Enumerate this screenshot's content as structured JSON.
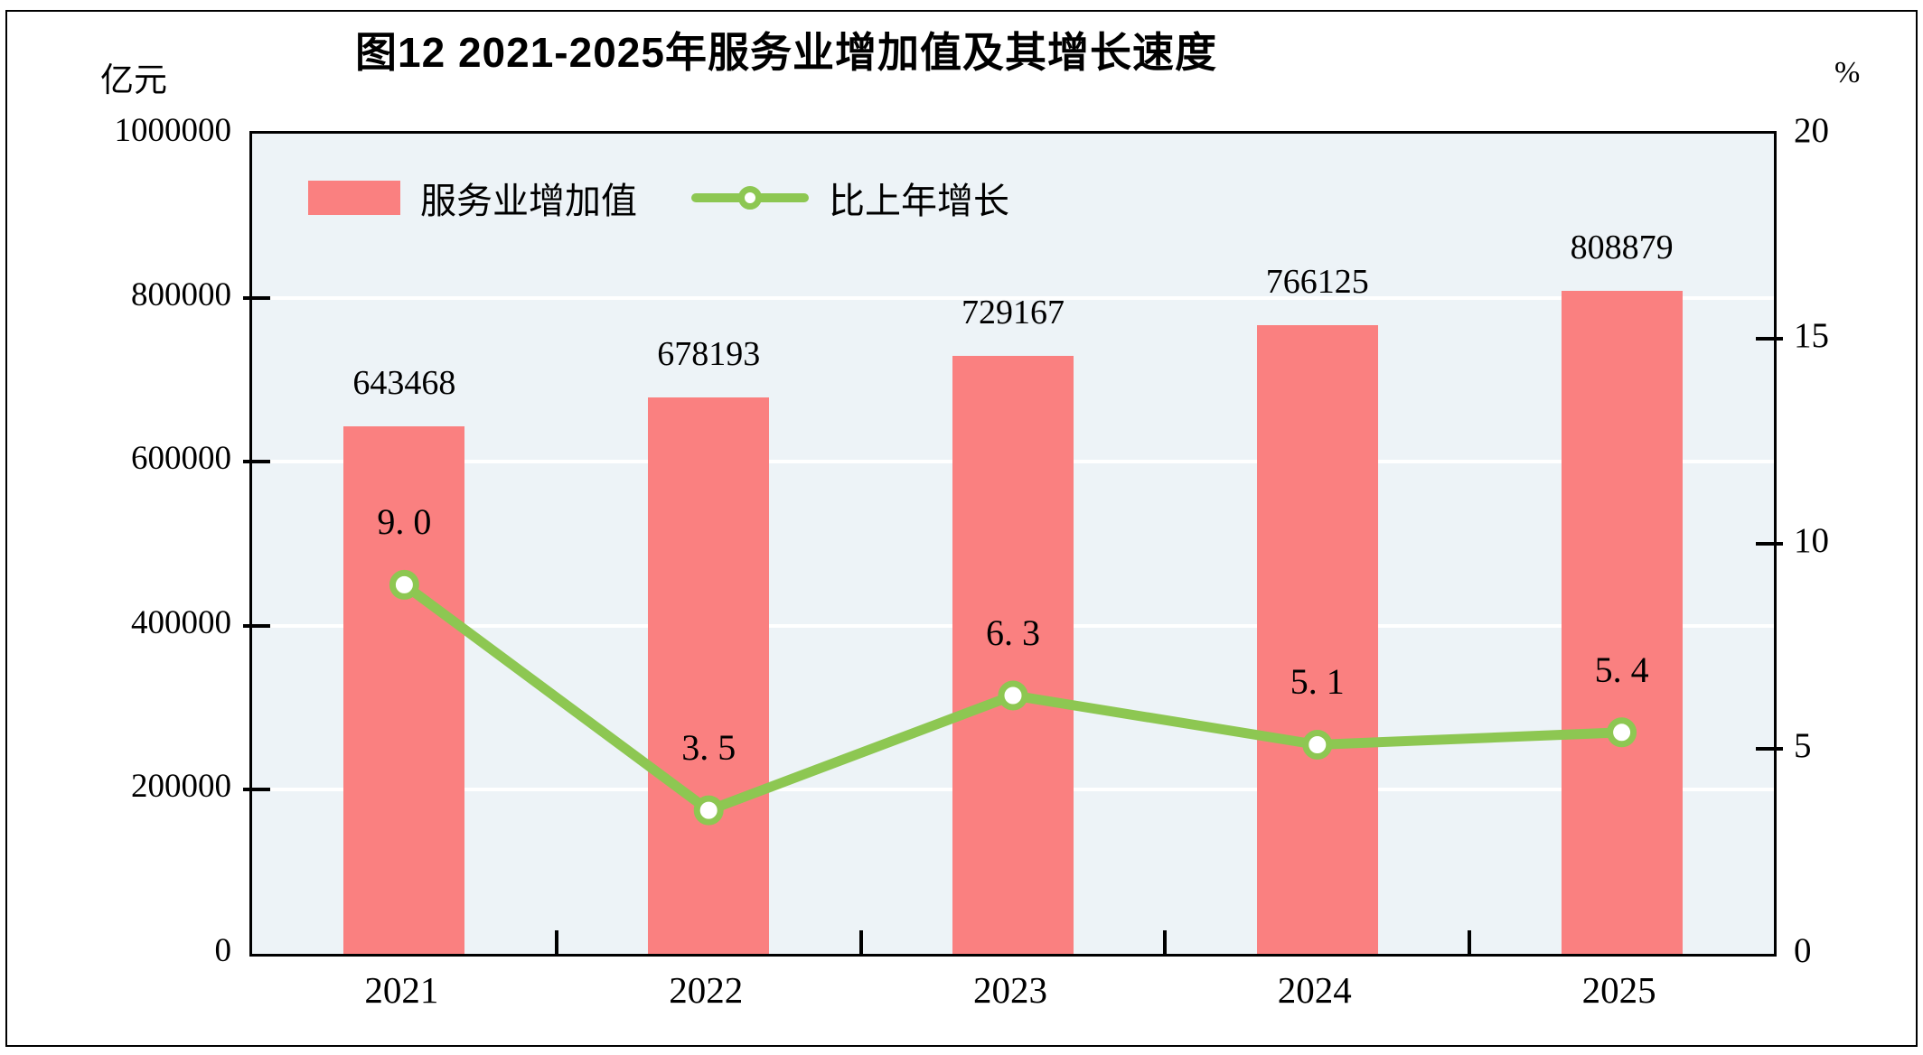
{
  "title": "图12  2021-2025年服务业增加值及其增长速度",
  "left_axis": {
    "unit": "亿元",
    "ticks": [
      "1000000",
      "800000",
      "600000",
      "400000",
      "200000",
      "0"
    ]
  },
  "right_axis": {
    "unit": "%",
    "ticks": [
      "20",
      "15",
      "10",
      "5",
      "0"
    ]
  },
  "legend": [
    {
      "label": "服务业增加值",
      "type": "bar"
    },
    {
      "label": "比上年增长",
      "type": "line"
    }
  ],
  "colors": {
    "bar": "#fa8080",
    "line": "#8dc752",
    "marker_fill": "#ffffff",
    "plot_bg": "#edf3f7",
    "grid": "#ffffff",
    "axis": "#000000",
    "text": "#000000"
  },
  "chart_data": {
    "type": "bar+line",
    "title": "图12  2021-2025年服务业增加值及其增长速度",
    "categories": [
      "2021",
      "2022",
      "2023",
      "2024",
      "2025"
    ],
    "series": [
      {
        "name": "服务业增加值",
        "type": "bar",
        "axis": "left",
        "unit": "亿元",
        "values": [
          643468,
          678193,
          729167,
          766125,
          808879
        ],
        "labels": [
          "643468",
          "678193",
          "729167",
          "766125",
          "808879"
        ]
      },
      {
        "name": "比上年增长",
        "type": "line",
        "axis": "right",
        "unit": "%",
        "values": [
          9.0,
          3.5,
          6.3,
          5.1,
          5.4
        ],
        "labels": [
          "9. 0",
          "3. 5",
          "6. 3",
          "5. 1",
          "5. 4"
        ]
      }
    ],
    "left_ylim": [
      0,
      1000000
    ],
    "left_step": 200000,
    "right_ylim": [
      0,
      20
    ],
    "right_step": 5,
    "grid": true,
    "legend_position": "top-left-inside"
  }
}
